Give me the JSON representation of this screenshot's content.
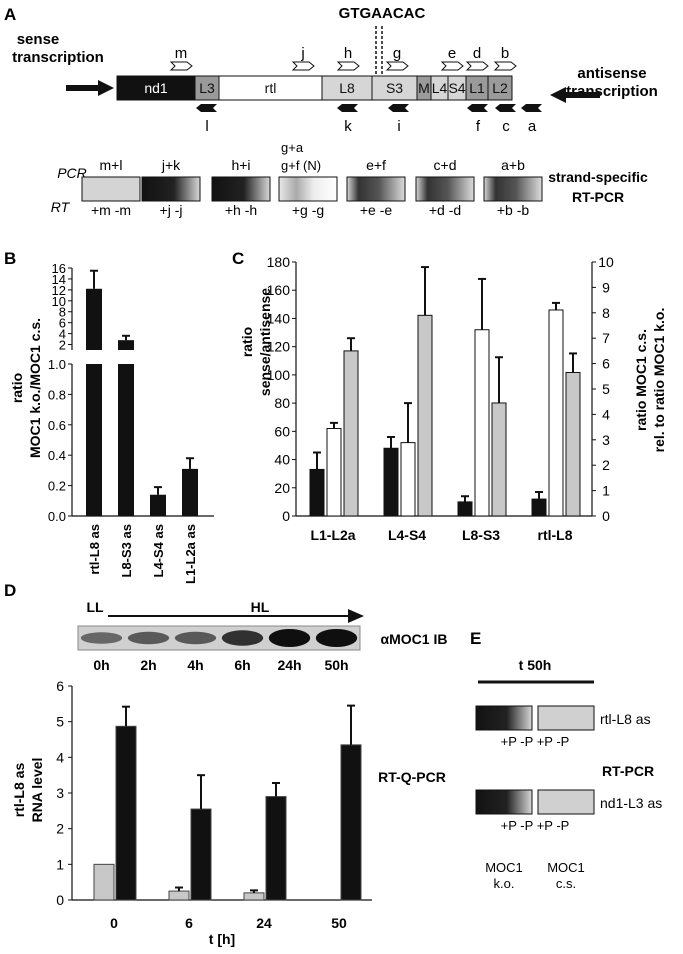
{
  "panel_a": {
    "letter": "A",
    "motif": "GTGAACAC",
    "sense_label": [
      "sense",
      "transcription"
    ],
    "antisense_label": [
      "antisense",
      "transcription"
    ],
    "segments": [
      {
        "label": "nd1",
        "color": "#111111",
        "text_color": "#ffffff"
      },
      {
        "label": "L3",
        "color": "#9a9a9a",
        "text_color": "#111111"
      },
      {
        "label": "rtl",
        "color": "#ffffff",
        "text_color": "#111111"
      },
      {
        "label": "L8",
        "color": "#d6d6d6",
        "text_color": "#111111"
      },
      {
        "label": "S3",
        "color": "#d6d6d6",
        "text_color": "#111111"
      },
      {
        "label": "M",
        "color": "#9a9a9a",
        "text_color": "#111111"
      },
      {
        "label": "L4",
        "color": "#d6d6d6",
        "text_color": "#111111"
      },
      {
        "label": "S4",
        "color": "#d6d6d6",
        "text_color": "#111111"
      },
      {
        "label": "L1",
        "color": "#9a9a9a",
        "text_color": "#111111"
      },
      {
        "label": "L2",
        "color": "#9a9a9a",
        "text_color": "#111111"
      }
    ],
    "forward_primers": [
      "m",
      "j",
      "h",
      "g",
      "e",
      "d",
      "b"
    ],
    "reverse_primers": [
      "l",
      "k",
      "i",
      "f",
      "c",
      "a"
    ],
    "pcr_row_label": "PCR",
    "rt_row_label": "RT",
    "side_label": [
      "strand-specific",
      "RT-PCR"
    ],
    "gels": [
      {
        "pcr": [
          "m+l"
        ],
        "rt": "+m -m",
        "band": "none"
      },
      {
        "pcr": [
          "j+k"
        ],
        "rt": "+j  -j",
        "band": "strong"
      },
      {
        "pcr": [
          "h+i"
        ],
        "rt": "+h  -h",
        "band": "strong"
      },
      {
        "pcr": [
          "g+a",
          "g+f (N)"
        ],
        "rt": "+g  -g",
        "band": "faint"
      },
      {
        "pcr": [
          "e+f"
        ],
        "rt": "+e  -e",
        "band": "medium"
      },
      {
        "pcr": [
          "c+d"
        ],
        "rt": "+d  -d",
        "band": "medium"
      },
      {
        "pcr": [
          "a+b"
        ],
        "rt": "+b  -b",
        "band": "medium"
      }
    ]
  },
  "panel_b": {
    "letter": "B",
    "ylabel": [
      "ratio",
      "MOC1 k.o./MOC1 c.s."
    ],
    "upper_ticks": [
      "2",
      "4",
      "6",
      "8",
      "10",
      "12",
      "14",
      "16"
    ],
    "lower_ticks": [
      "0.0",
      "0.2",
      "0.4",
      "0.6",
      "0.8",
      "1.0"
    ]
  },
  "panel_c": {
    "letter": "C",
    "ylabel_left": [
      "ratio",
      "sense/antisense"
    ],
    "ylabel_right": [
      "ratio MOC1 c.s.",
      "rel. to ratio MOC1 k.o."
    ],
    "left_ticks": [
      "0",
      "20",
      "40",
      "60",
      "80",
      "100",
      "120",
      "140",
      "160",
      "180"
    ],
    "right_ticks": [
      "0",
      "1",
      "2",
      "3",
      "4",
      "5",
      "6",
      "7",
      "8",
      "9",
      "10"
    ]
  },
  "panel_d": {
    "letter": "D",
    "ll": "LL",
    "hl": "HL",
    "blot_label": "αMOC1 IB",
    "blot_times": [
      "0h",
      "2h",
      "4h",
      "6h",
      "24h",
      "50h"
    ],
    "blot_levels": [
      0.35,
      0.45,
      0.45,
      0.75,
      1.0,
      1.0
    ],
    "ylabel": [
      "rtl-L8 as",
      "RNA level"
    ],
    "xlabel": "t [h]",
    "yticks": [
      "0",
      "1",
      "2",
      "3",
      "4",
      "5",
      "6"
    ],
    "side_label": "RT-Q-PCR"
  },
  "panel_e": {
    "letter": "E",
    "title": "t 50h",
    "rows": [
      {
        "label": "rtl-L8 as",
        "lanes": "+P  -P  +P  -P"
      },
      {
        "label": "nd1-L3 as",
        "lanes": "+P  -P  +P  -P"
      }
    ],
    "side_label": "RT-PCR",
    "col1": [
      "MOC1",
      "k.o."
    ],
    "col2": [
      "MOC1",
      "c.s."
    ]
  },
  "chart_data": [
    {
      "panel": "B",
      "type": "bar",
      "categories": [
        "rtl-L8 as",
        "L8-S3 as",
        "L4-S4 as",
        "L1-L2a as"
      ],
      "values": [
        12.2,
        2.8,
        0.14,
        0.31
      ],
      "errors": [
        3.3,
        0.8,
        0.05,
        0.07
      ],
      "ylabel": "ratio MOC1 k.o./MOC1 c.s.",
      "ylim_lower": [
        0,
        1.0
      ],
      "ylim_upper": [
        1,
        16
      ],
      "broken_axis": true
    },
    {
      "panel": "C",
      "type": "bar",
      "categories": [
        "L1-L2a",
        "L4-S4",
        "L8-S3",
        "rtl-L8"
      ],
      "series": [
        {
          "color": "#111111",
          "axis": "left",
          "values": [
            33,
            48,
            10,
            12
          ],
          "errors": [
            12,
            8,
            4,
            5
          ]
        },
        {
          "color": "#ffffff",
          "axis": "left",
          "values": [
            62,
            52,
            132,
            146
          ],
          "errors": [
            4,
            28,
            36,
            5
          ]
        },
        {
          "color": "#c8c8c8",
          "axis": "right",
          "values": [
            6.5,
            7.9,
            4.45,
            5.65
          ],
          "errors": [
            0.5,
            1.9,
            1.8,
            0.75
          ]
        }
      ],
      "ylabel_left": "ratio sense/antisense",
      "ylabel_right": "ratio MOC1 c.s. rel. to ratio MOC1 k.o.",
      "ylim_left": [
        0,
        180
      ],
      "ylim_right": [
        0,
        10
      ]
    },
    {
      "panel": "D",
      "type": "bar",
      "categories": [
        "0",
        "6",
        "24",
        "50"
      ],
      "series": [
        {
          "color": "#c8c8c8",
          "values": [
            1.0,
            0.25,
            0.2,
            null
          ],
          "errors": [
            0,
            0.1,
            0.07,
            null
          ]
        },
        {
          "color": "#111111",
          "values": [
            4.87,
            2.55,
            2.9,
            4.35
          ],
          "errors": [
            0.55,
            0.95,
            0.38,
            1.1
          ]
        }
      ],
      "xlabel": "t [h]",
      "ylabel": "rtl-L8 as RNA level",
      "ylim": [
        0,
        6
      ]
    }
  ]
}
